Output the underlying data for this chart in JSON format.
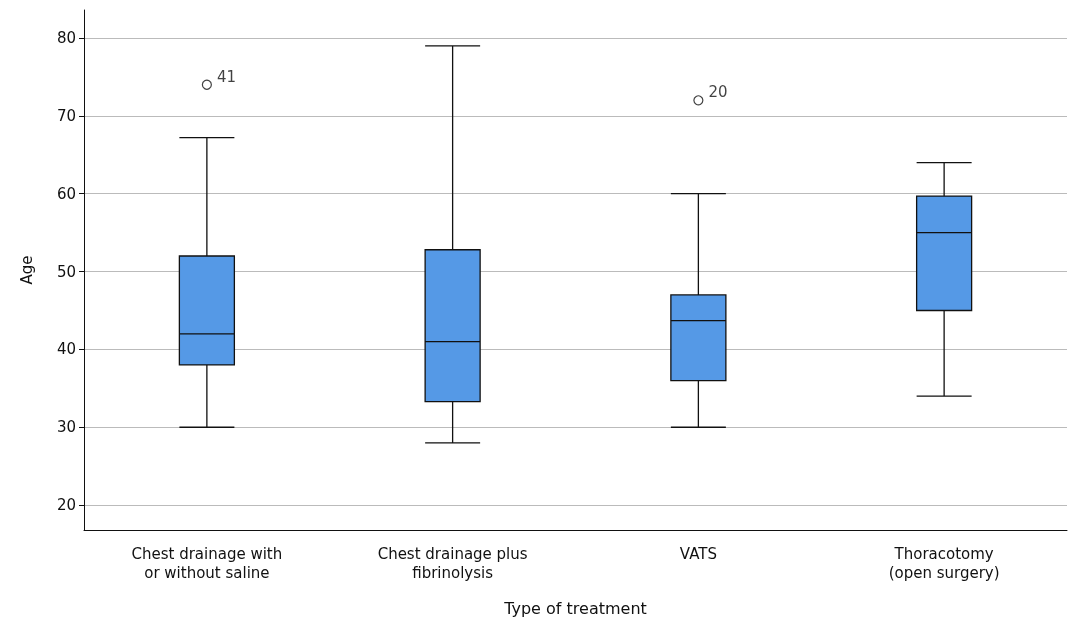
{
  "chart_data": {
    "type": "box",
    "xlabel": "Type of treatment",
    "ylabel": "Age",
    "categories": [
      "Chest drainage with\nor without saline",
      "Chest drainage plus\nfibrinolysis",
      "VATS",
      "Thoracotomy\n(open surgery)"
    ],
    "boxes": [
      {
        "low": 30,
        "q1": 38,
        "median": 42,
        "q3": 52,
        "high": 67.2,
        "outliers": [
          74
        ]
      },
      {
        "low": 28,
        "q1": 33.3,
        "median": 41,
        "q3": 52.8,
        "high": 79
      },
      {
        "low": 30,
        "q1": 36,
        "median": 43.7,
        "q3": 47,
        "high": 60,
        "outliers": [
          72
        ]
      },
      {
        "low": 34,
        "q1": 45,
        "median": 55,
        "q3": 59.7,
        "high": 64
      }
    ],
    "color": "#5599e6",
    "ylim": [
      16.8,
      83.6
    ],
    "yticks": [
      20,
      30,
      40,
      50,
      60,
      70,
      80
    ],
    "grid": "y",
    "annotations": [
      "41",
      "20"
    ]
  }
}
